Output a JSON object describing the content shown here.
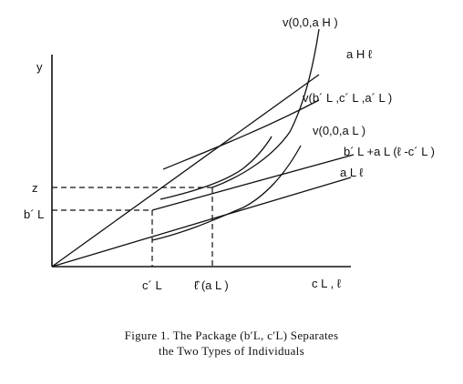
{
  "labels": {
    "y_axis": "y",
    "x_axis": "c L , ℓ",
    "z": "z",
    "b_L_prime": "b´ L",
    "c_L_prime": "c´ L",
    "l_hat": "ℓ̂ (a L )",
    "v_H": "v(0,0,a H )",
    "a_H_l": "a H ℓ",
    "v_prime": "v(b´ L ,c´ L ,a´ L )",
    "v_L": "v(0,0,a L )",
    "budget_line": "b´ L +a L (ℓ -c´ L )",
    "a_L_l": "a L ℓ"
  },
  "caption": {
    "line1": "Figure 1. The Package (b′L, c′L) Separates",
    "line2": "the Two Types of Individuals"
  }
}
